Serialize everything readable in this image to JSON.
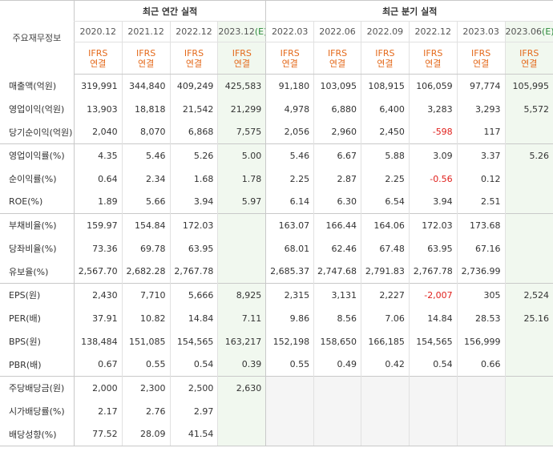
{
  "header": {
    "label": "주요재무정보",
    "annual_title": "최근 연간 실적",
    "quarter_title": "최근 분기 실적",
    "periods": [
      {
        "label": "2020.12",
        "est": ""
      },
      {
        "label": "2021.12",
        "est": ""
      },
      {
        "label": "2022.12",
        "est": ""
      },
      {
        "label": "2023.12",
        "est": "(E)"
      },
      {
        "label": "2022.03",
        "est": ""
      },
      {
        "label": "2022.06",
        "est": ""
      },
      {
        "label": "2022.09",
        "est": ""
      },
      {
        "label": "2022.12",
        "est": ""
      },
      {
        "label": "2023.03",
        "est": ""
      },
      {
        "label": "2023.06",
        "est": "(E)"
      }
    ],
    "ifrs_line1": "IFRS",
    "ifrs_line2": "연결"
  },
  "rows": [
    {
      "label": "매출액(억원)",
      "values": [
        "319,991",
        "344,840",
        "409,249",
        "425,583",
        "91,180",
        "103,095",
        "108,915",
        "106,059",
        "97,774",
        "105,995"
      ]
    },
    {
      "label": "영업이익(억원)",
      "values": [
        "13,903",
        "18,818",
        "21,542",
        "21,299",
        "4,978",
        "6,880",
        "6,400",
        "3,283",
        "3,293",
        "5,572"
      ]
    },
    {
      "label": "당기순이익(억원)",
      "values": [
        "2,040",
        "8,070",
        "6,868",
        "7,575",
        "2,056",
        "2,960",
        "2,450",
        "-598",
        "117",
        ""
      ]
    },
    {
      "label": "영업이익률(%)",
      "values": [
        "4.35",
        "5.46",
        "5.26",
        "5.00",
        "5.46",
        "6.67",
        "5.88",
        "3.09",
        "3.37",
        "5.26"
      ]
    },
    {
      "label": "순이익률(%)",
      "values": [
        "0.64",
        "2.34",
        "1.68",
        "1.78",
        "2.25",
        "2.87",
        "2.25",
        "-0.56",
        "0.12",
        ""
      ]
    },
    {
      "label": "ROE(%)",
      "values": [
        "1.89",
        "5.66",
        "3.94",
        "5.97",
        "6.14",
        "6.30",
        "6.54",
        "3.94",
        "2.51",
        ""
      ]
    },
    {
      "label": "부채비율(%)",
      "values": [
        "159.97",
        "154.84",
        "172.03",
        "",
        "163.07",
        "166.44",
        "164.06",
        "172.03",
        "173.68",
        ""
      ]
    },
    {
      "label": "당좌비율(%)",
      "values": [
        "73.36",
        "69.78",
        "63.95",
        "",
        "68.01",
        "62.46",
        "67.48",
        "63.95",
        "67.16",
        ""
      ]
    },
    {
      "label": "유보율(%)",
      "values": [
        "2,567.70",
        "2,682.28",
        "2,767.78",
        "",
        "2,685.37",
        "2,747.68",
        "2,791.83",
        "2,767.78",
        "2,736.99",
        ""
      ]
    },
    {
      "label": "EPS(원)",
      "values": [
        "2,430",
        "7,710",
        "5,666",
        "8,925",
        "2,315",
        "3,131",
        "2,227",
        "-2,007",
        "305",
        "2,524"
      ]
    },
    {
      "label": "PER(배)",
      "values": [
        "37.91",
        "10.82",
        "14.84",
        "7.11",
        "9.86",
        "8.56",
        "7.06",
        "14.84",
        "28.53",
        "25.16"
      ]
    },
    {
      "label": "BPS(원)",
      "values": [
        "138,484",
        "151,085",
        "154,565",
        "163,217",
        "152,198",
        "158,650",
        "166,185",
        "154,565",
        "156,999",
        ""
      ]
    },
    {
      "label": "PBR(배)",
      "values": [
        "0.67",
        "0.55",
        "0.54",
        "0.39",
        "0.55",
        "0.49",
        "0.42",
        "0.54",
        "0.66",
        ""
      ]
    },
    {
      "label": "주당배당금(원)",
      "values": [
        "2,000",
        "2,300",
        "2,500",
        "2,630",
        "",
        "",
        "",
        "",
        "",
        ""
      ]
    },
    {
      "label": "시가배당률(%)",
      "values": [
        "2.17",
        "2.76",
        "2.97",
        "",
        "",
        "",
        "",
        "",
        "",
        ""
      ]
    },
    {
      "label": "배당성향(%)",
      "values": [
        "77.52",
        "28.09",
        "41.54",
        "",
        "",
        "",
        "",
        "",
        "",
        ""
      ]
    }
  ],
  "colors": {
    "ifrs": "#e46a1c",
    "estimate": "#2a8a3a",
    "negative": "#e0201c",
    "estimate_bg": "#f1f8ef"
  }
}
